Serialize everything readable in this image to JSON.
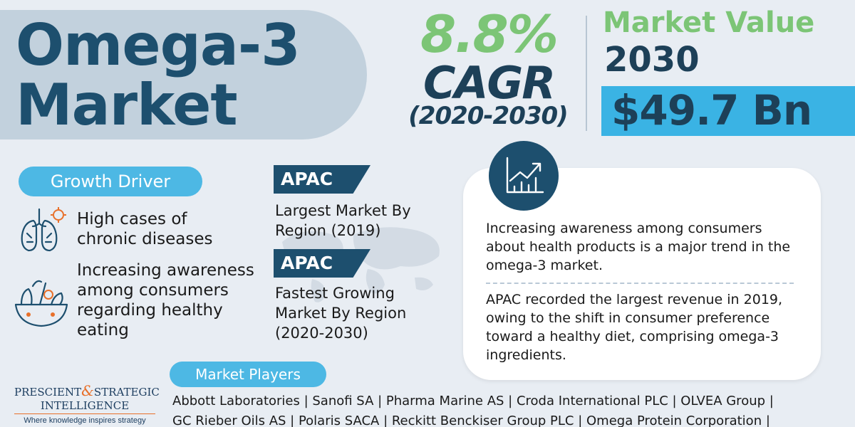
{
  "title": {
    "line1": "Omega-3",
    "line2": "Market"
  },
  "cagr": {
    "percent": "8.8%",
    "label": "CAGR",
    "period": "(2020-2030)"
  },
  "market_value": {
    "title": "Market Value",
    "year": "2030",
    "amount": "$49.7 Bn"
  },
  "growth_driver": {
    "label": "Growth Driver",
    "items": [
      {
        "icon": "lungs-icon",
        "text": "High cases of chronic diseases"
      },
      {
        "icon": "healthy-food-bowl-icon",
        "text": "Increasing awareness among consumers regarding healthy eating"
      }
    ]
  },
  "regions": [
    {
      "tag": "APAC",
      "text": "Largest Market By Region (2019)"
    },
    {
      "tag": "APAC",
      "text": "Fastest Growing Market By Region (2020-2030)"
    }
  ],
  "card": {
    "icon": "growth-chart-icon",
    "para1": "Increasing awareness among consumers about health products is a major trend in the omega-3 market.",
    "para2": "APAC recorded the largest revenue in 2019, owing to the shift in consumer preference toward a healthy diet, comprising omega-3 ingredients."
  },
  "market_players": {
    "label": "Market Players",
    "line1": "Abbott Laboratories | Sanofi SA | Pharma Marine AS | Croda International PLC | OLVEA Group |",
    "line2": "GC Rieber Oils AS | Polaris SACA | Reckitt Benckiser Group PLC | Omega Protein Corporation |"
  },
  "logo": {
    "word1": "PRESCIENT",
    "amp": "&",
    "word2": "STRATEGIC",
    "line2": "INTELLIGENCE",
    "tagline": "Where knowledge inspires strategy"
  },
  "colors": {
    "navy": "#1d4f6e",
    "green": "#7cc576",
    "sky": "#3ab3e4",
    "panel": "#c2d1dd",
    "background": "#e8edf3"
  }
}
